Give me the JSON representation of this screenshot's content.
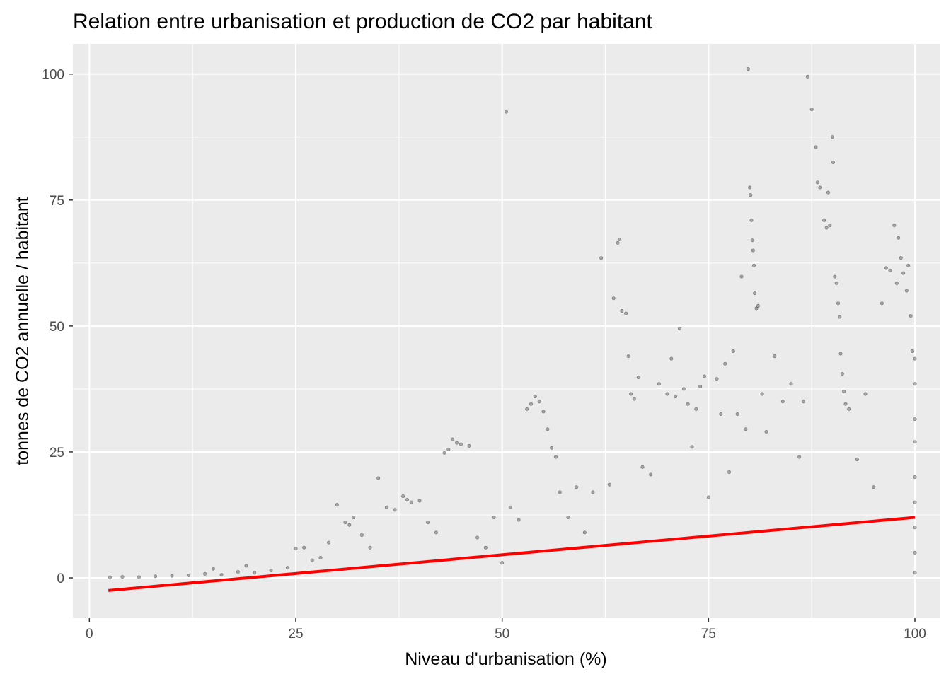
{
  "chart_data": {
    "type": "scatter",
    "title": "Relation entre urbanisation et production de CO2 par habitant",
    "xlabel": "Niveau d'urbanisation (%)",
    "ylabel": "tonnes de CO2 annuelle / habitant",
    "xlim": [
      -2,
      103
    ],
    "ylim": [
      -8,
      106
    ],
    "x_ticks": [
      0,
      25,
      50,
      75,
      100
    ],
    "y_ticks": [
      0,
      25,
      50,
      75,
      100
    ],
    "grid": true,
    "legend": "none",
    "point_color": "#000000",
    "trend_color": "#ff0000",
    "panel_background": "#ebebeb",
    "trend_line": {
      "x": [
        2.3,
        100
      ],
      "y": [
        -2.5,
        12.0
      ]
    },
    "points": [
      [
        2.5,
        0.1
      ],
      [
        4,
        0.2
      ],
      [
        6,
        0.15
      ],
      [
        8,
        0.3
      ],
      [
        10,
        0.4
      ],
      [
        12,
        0.5
      ],
      [
        14,
        0.8
      ],
      [
        15,
        1.8
      ],
      [
        16,
        0.6
      ],
      [
        18,
        1.2
      ],
      [
        19,
        2.4
      ],
      [
        20,
        1.0
      ],
      [
        22,
        1.5
      ],
      [
        24,
        2.0
      ],
      [
        25,
        5.8
      ],
      [
        26,
        6.0
      ],
      [
        27,
        3.5
      ],
      [
        28,
        4.0
      ],
      [
        29,
        7.0
      ],
      [
        30,
        14.5
      ],
      [
        31,
        11.0
      ],
      [
        31.5,
        10.5
      ],
      [
        32,
        12.0
      ],
      [
        33,
        8.5
      ],
      [
        34,
        6.0
      ],
      [
        35,
        19.8
      ],
      [
        36,
        14.0
      ],
      [
        37,
        13.5
      ],
      [
        38,
        16.2
      ],
      [
        38.5,
        15.5
      ],
      [
        39,
        15.0
      ],
      [
        40,
        15.3
      ],
      [
        41,
        11.0
      ],
      [
        42,
        9.0
      ],
      [
        43,
        24.8
      ],
      [
        43.5,
        25.5
      ],
      [
        44,
        27.5
      ],
      [
        44.5,
        26.8
      ],
      [
        45,
        26.5
      ],
      [
        46,
        26.2
      ],
      [
        47,
        8.0
      ],
      [
        48,
        6.0
      ],
      [
        49,
        12.0
      ],
      [
        50,
        3.0
      ],
      [
        50.5,
        92.5
      ],
      [
        51,
        14.0
      ],
      [
        52,
        11.5
      ],
      [
        53,
        33.5
      ],
      [
        53.5,
        34.5
      ],
      [
        54,
        36.0
      ],
      [
        54.5,
        35.0
      ],
      [
        55,
        33.0
      ],
      [
        55.5,
        29.5
      ],
      [
        56,
        25.8
      ],
      [
        56.5,
        24.0
      ],
      [
        57,
        17.0
      ],
      [
        58,
        12.0
      ],
      [
        59,
        18.0
      ],
      [
        60,
        9.0
      ],
      [
        61,
        17.0
      ],
      [
        62,
        63.5
      ],
      [
        63,
        18.5
      ],
      [
        63.5,
        55.5
      ],
      [
        64,
        66.5
      ],
      [
        64.2,
        67.2
      ],
      [
        64.5,
        53.0
      ],
      [
        65,
        52.5
      ],
      [
        65.3,
        44.0
      ],
      [
        65.6,
        36.5
      ],
      [
        66,
        35.5
      ],
      [
        66.5,
        39.8
      ],
      [
        67,
        22.0
      ],
      [
        68,
        20.5
      ],
      [
        69,
        38.5
      ],
      [
        70,
        36.5
      ],
      [
        70.5,
        43.5
      ],
      [
        71,
        36.0
      ],
      [
        71.5,
        49.5
      ],
      [
        72,
        37.5
      ],
      [
        72.5,
        34.5
      ],
      [
        73,
        26.0
      ],
      [
        73.5,
        33.5
      ],
      [
        74,
        38.0
      ],
      [
        74.5,
        40.0
      ],
      [
        75,
        16.0
      ],
      [
        76,
        39.5
      ],
      [
        76.5,
        32.5
      ],
      [
        77,
        42.5
      ],
      [
        77.5,
        21.0
      ],
      [
        78,
        45.0
      ],
      [
        78.5,
        32.5
      ],
      [
        79,
        59.8
      ],
      [
        79.5,
        29.5
      ],
      [
        79.8,
        101.0
      ],
      [
        80,
        77.5
      ],
      [
        80.1,
        76.0
      ],
      [
        80.2,
        71.0
      ],
      [
        80.3,
        67.0
      ],
      [
        80.4,
        65.0
      ],
      [
        80.5,
        62.0
      ],
      [
        80.6,
        56.5
      ],
      [
        80.8,
        53.5
      ],
      [
        81,
        54.0
      ],
      [
        81.5,
        36.5
      ],
      [
        82,
        29.0
      ],
      [
        83,
        44.0
      ],
      [
        84,
        35.0
      ],
      [
        85,
        38.5
      ],
      [
        86,
        24.0
      ],
      [
        86.5,
        35.0
      ],
      [
        87,
        99.5
      ],
      [
        87.5,
        93.0
      ],
      [
        88,
        85.5
      ],
      [
        88.2,
        78.5
      ],
      [
        88.5,
        77.5
      ],
      [
        89,
        71.0
      ],
      [
        89.3,
        69.5
      ],
      [
        89.5,
        76.5
      ],
      [
        89.7,
        70.0
      ],
      [
        90,
        87.5
      ],
      [
        90.1,
        82.5
      ],
      [
        90.3,
        59.8
      ],
      [
        90.5,
        58.5
      ],
      [
        90.7,
        54.5
      ],
      [
        90.9,
        51.8
      ],
      [
        91,
        44.5
      ],
      [
        91.2,
        40.5
      ],
      [
        91.4,
        37.0
      ],
      [
        91.6,
        34.5
      ],
      [
        92,
        33.5
      ],
      [
        93,
        23.5
      ],
      [
        94,
        36.5
      ],
      [
        95,
        18.0
      ],
      [
        96,
        54.5
      ],
      [
        96.5,
        61.5
      ],
      [
        97,
        61.0
      ],
      [
        97.5,
        70.0
      ],
      [
        97.8,
        58.5
      ],
      [
        98,
        67.5
      ],
      [
        98.3,
        63.5
      ],
      [
        98.6,
        60.5
      ],
      [
        99,
        57.0
      ],
      [
        99.2,
        62.0
      ],
      [
        99.5,
        52.0
      ],
      [
        99.7,
        45.0
      ],
      [
        100,
        43.5
      ],
      [
        100,
        38.5
      ],
      [
        100,
        31.5
      ],
      [
        100,
        27.0
      ],
      [
        100,
        20.0
      ],
      [
        100,
        15.0
      ],
      [
        100,
        10.0
      ],
      [
        100,
        5.0
      ],
      [
        100,
        1.0
      ]
    ]
  }
}
